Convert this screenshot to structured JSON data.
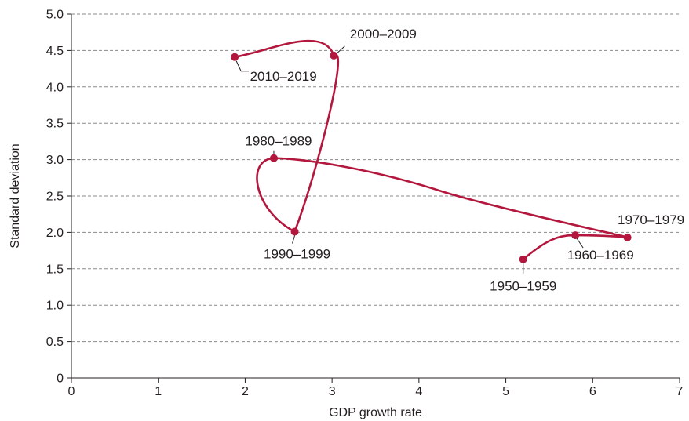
{
  "chart_data": {
    "type": "line",
    "title": "",
    "xlabel": "GDP growth rate",
    "ylabel": "Standard deviation",
    "xlim": [
      0,
      7
    ],
    "ylim": [
      0,
      5.0
    ],
    "x_ticks": [
      "0",
      "1",
      "2",
      "3",
      "4",
      "5",
      "6",
      "7"
    ],
    "y_ticks": [
      "0",
      "0.5",
      "1.0",
      "1.5",
      "2.0",
      "2.5",
      "3.0",
      "3.5",
      "4.0",
      "4.5",
      "5.0"
    ],
    "grid": "horizontal dashed",
    "series": [
      {
        "color": "#b3173d",
        "points": [
          {
            "label": "1950–1959",
            "x": 5.2,
            "y": 1.63
          },
          {
            "label": "1960–1969",
            "x": 5.8,
            "y": 1.96
          },
          {
            "label": "1970–1979",
            "x": 6.4,
            "y": 1.93
          },
          {
            "label": "1980–1989",
            "x": 2.33,
            "y": 3.02
          },
          {
            "label": "1990–1999",
            "x": 2.57,
            "y": 2.01
          },
          {
            "label": "2000–2009",
            "x": 3.02,
            "y": 4.43
          },
          {
            "label": "2010–2019",
            "x": 1.88,
            "y": 4.41
          }
        ]
      }
    ]
  }
}
